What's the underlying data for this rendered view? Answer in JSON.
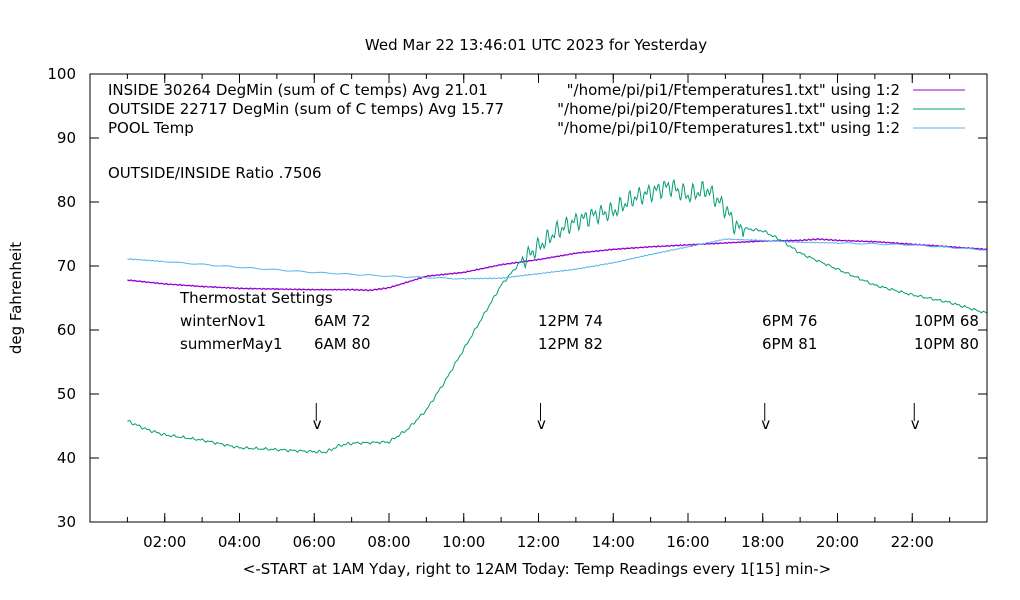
{
  "chart_data": {
    "type": "line",
    "title": "Wed Mar 22 13:46:01 UTC 2023 for Yesterday",
    "xlabel": "<-START at 1AM Yday, right to 12AM Today:  Temp Readings every 1[15] min->",
    "ylabel": "deg Fahrenheit",
    "xlim": [
      "00:00",
      "24:00"
    ],
    "ylim": [
      30,
      100
    ],
    "yticks": [
      30,
      40,
      50,
      60,
      70,
      80,
      90,
      100
    ],
    "xticks": [
      "02:00",
      "04:00",
      "06:00",
      "08:00",
      "10:00",
      "12:00",
      "14:00",
      "16:00",
      "18:00",
      "20:00",
      "22:00"
    ],
    "grid": false,
    "legend_placement": "top",
    "series": [
      {
        "name": "INSIDE 30264 DegMin (sum of C temps) Avg 21.01",
        "source": "\"/home/pi/pi1/Ftemperatures1.txt\" using 1:2",
        "color": "#9400d3",
        "x": [
          1,
          2,
          3,
          4,
          5,
          6,
          7,
          7.5,
          8,
          9,
          10,
          11,
          12,
          13,
          14,
          15,
          16,
          17,
          18,
          19,
          19.5,
          20,
          21,
          22,
          23,
          24
        ],
        "y": [
          67.8,
          67.2,
          66.8,
          66.5,
          66.4,
          66.3,
          66.3,
          66.2,
          66.6,
          68.4,
          69.0,
          70.2,
          71.0,
          72.0,
          72.6,
          73.0,
          73.3,
          73.6,
          73.9,
          74.0,
          74.2,
          74.0,
          73.8,
          73.4,
          73.0,
          72.6
        ]
      },
      {
        "name": "OUTSIDE 22717 DegMin (sum of C temps) Avg 15.77",
        "source": "\"/home/pi/pi20/Ftemperatures1.txt\" using 1:2",
        "color": "#009e73",
        "x": [
          1,
          1.5,
          2,
          3,
          4,
          5,
          6,
          6.3,
          6.7,
          7,
          8,
          8.5,
          9,
          9.5,
          10,
          10.5,
          11,
          11.5,
          12,
          12.5,
          13,
          13.5,
          14,
          14.5,
          15,
          15.5,
          16,
          16.5,
          17,
          17.3,
          18,
          18.5,
          19,
          20,
          21,
          22,
          23,
          24
        ],
        "y": [
          45.8,
          44.5,
          43.6,
          42.8,
          41.6,
          41.3,
          41.0,
          40.9,
          42.0,
          42.3,
          42.5,
          44.5,
          47.5,
          52,
          57,
          62,
          67,
          70.5,
          73,
          75.5,
          77,
          78,
          78.5,
          80.5,
          81.5,
          82.5,
          81,
          82,
          79,
          76,
          75.5,
          74,
          72,
          69.5,
          67,
          65.5,
          64.3,
          62.6
        ]
      },
      {
        "name": "POOL Temp",
        "source": "\"/home/pi/pi10/Ftemperatures1.txt\" using 1:2",
        "color": "#56b4e9",
        "x": [
          1,
          2,
          4,
          6,
          8,
          10,
          11,
          12,
          13,
          14,
          15,
          16,
          17,
          18,
          19,
          20,
          22,
          24
        ],
        "y": [
          71.1,
          70.7,
          69.8,
          69.0,
          68.4,
          68.0,
          68.1,
          68.8,
          69.5,
          70.5,
          71.8,
          73.0,
          74.2,
          74.0,
          73.7,
          73.6,
          73.3,
          72.5
        ]
      }
    ],
    "annotations": {
      "ratio": "OUTSIDE/INSIDE Ratio .7506",
      "thermostat_title": "Thermostat Settings",
      "rows": [
        {
          "label": "winterNov1",
          "values": [
            "6AM 72",
            "12PM 74",
            "6PM 76",
            "10PM 68"
          ]
        },
        {
          "label": "summerMay1",
          "values": [
            "6AM 80",
            "12PM 82",
            "6PM 81",
            "10PM 80"
          ]
        }
      ],
      "arrow_hours": [
        6,
        12,
        18,
        22
      ],
      "arrow_glyph": "v"
    }
  }
}
